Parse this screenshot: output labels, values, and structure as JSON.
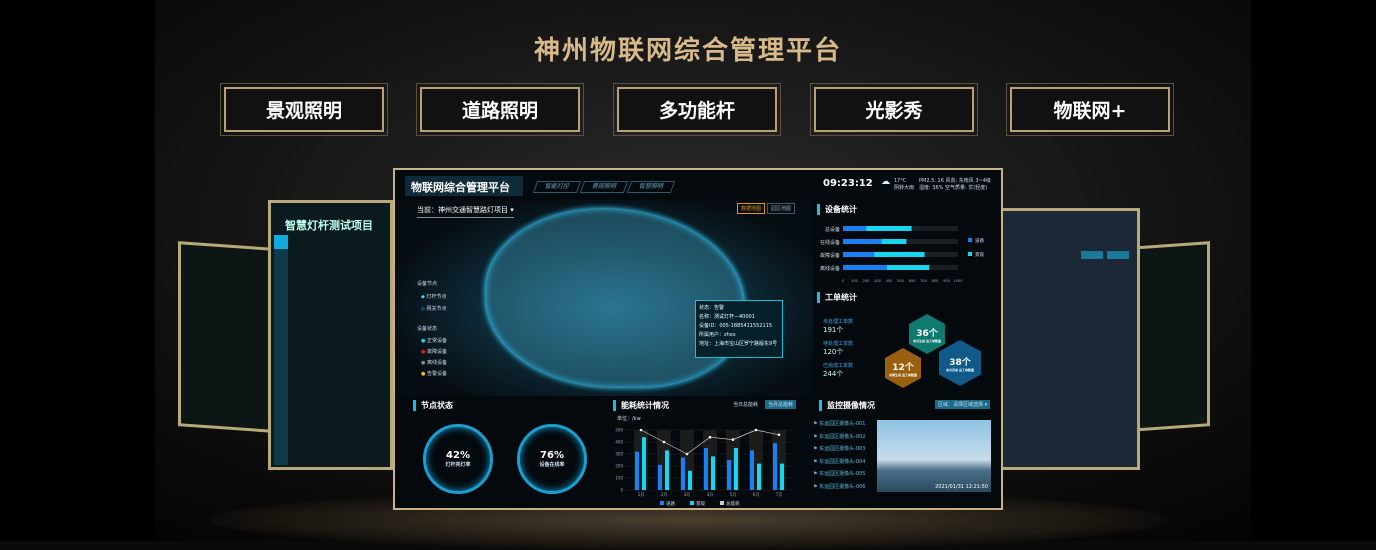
{
  "title": "神州物联网综合管理平台",
  "nav": [
    "景观照明",
    "道路照明",
    "多功能杆",
    "光影秀",
    "物联网+"
  ],
  "left_panel": {
    "title": "智慧灯杆测试项目"
  },
  "dashboard": {
    "title": "物联网综合管理平台",
    "tabs": [
      "智能灯控",
      "景观照明",
      "智慧照明"
    ],
    "project": "当前：神州交通智慧路灯项目",
    "map_toggle": [
      "数据地图",
      "园区地图"
    ],
    "time": "09:23:12",
    "weather": {
      "temp": "17°C",
      "desc": "阴转大雨",
      "pm": "PM2.5: 16",
      "humidity": "湿度: 36%",
      "wind": "风向: 东南风 3~4级",
      "air": "空气质量: 优(轻度)"
    },
    "legend": {
      "node_title": "设备节点",
      "nodes": [
        "灯杆节点",
        "网关节点"
      ],
      "status_title": "设备状态",
      "status": [
        {
          "label": "正常设备",
          "color": "#19d6f0"
        },
        {
          "label": "故障设备",
          "color": "#e02020"
        },
        {
          "label": "离线设备",
          "color": "#888888"
        },
        {
          "label": "告警设备",
          "color": "#f0c000"
        }
      ]
    },
    "popup": [
      "状态：告警",
      "名称：测试灯杆—40001",
      "设备ID：005-1885411552115",
      "所属用户：zhxx",
      "地址：上海市宝山区罗宁路版东9号"
    ],
    "device_stats": {
      "title": "设备统计",
      "categories": [
        "总设备",
        "在线设备",
        "故障设备",
        "离线设备"
      ],
      "series": [
        {
          "name": "道路",
          "color": "#1a7ff0",
          "values": [
            201,
            335,
            271,
            381
          ]
        },
        {
          "name": "景观",
          "color": "#19d6f0",
          "values": [
            395,
            216,
            438,
            368
          ]
        }
      ],
      "xticks": [
        "0",
        "100",
        "200",
        "300",
        "400",
        "500",
        "600",
        "700",
        "800",
        "900",
        "1000"
      ]
    },
    "work_orders": {
      "title": "工单统计",
      "items": [
        {
          "label": "未处理工单数",
          "value": "191个"
        },
        {
          "label": "待处理工单数",
          "value": "120个"
        },
        {
          "label": "已完成工单数",
          "value": "244个"
        }
      ],
      "hex": [
        {
          "value": "36个",
          "label": "本月生成 出工单数量",
          "color": "#0e7a70"
        },
        {
          "value": "12个",
          "label": "本周生成 出工单数量",
          "color": "#9a6010"
        },
        {
          "value": "38个",
          "label": "本月完成 出工单数量",
          "color": "#0f5a88"
        }
      ]
    },
    "node_status": {
      "title": "节点状态",
      "gauges": [
        {
          "value": "42%",
          "label": "灯杆亮灯率"
        },
        {
          "value": "76%",
          "label": "设备在线率"
        }
      ]
    },
    "energy": {
      "title": "能耗统计情况",
      "buttons": [
        "当日总能耗",
        "当月总能耗"
      ],
      "unit": "单位：/kw"
    },
    "camera": {
      "title": "监控摄像情况",
      "select": "区域：请择区域选择",
      "items": [
        "东运园区摄像头-001",
        "东运园区摄像头-002",
        "东运园区摄像头-003",
        "东运园区摄像头-004",
        "东运园区摄像头-005",
        "东运园区摄像头-006"
      ],
      "timestamp": "2021/01/31 12:21:50"
    }
  },
  "chart_data": {
    "type": "bar",
    "categories": [
      "1月",
      "2月",
      "3月",
      "4月",
      "5月",
      "6月",
      "7月"
    ],
    "series": [
      {
        "name": "道路",
        "type": "bar",
        "color": "#1a7ff0",
        "values": [
          320,
          210,
          270,
          350,
          250,
          330,
          390
        ]
      },
      {
        "name": "景观",
        "type": "bar",
        "color": "#19d6f0",
        "values": [
          440,
          330,
          160,
          280,
          350,
          220,
          220
        ]
      },
      {
        "name": "总能耗",
        "type": "line",
        "color": "#cccccc",
        "values": [
          500,
          400,
          300,
          440,
          420,
          500,
          460
        ]
      }
    ],
    "ylim": [
      0,
      500
    ],
    "yticks": [
      "0",
      "100",
      "200",
      "300",
      "400",
      "500"
    ],
    "ylabel": "单位：/kw"
  }
}
